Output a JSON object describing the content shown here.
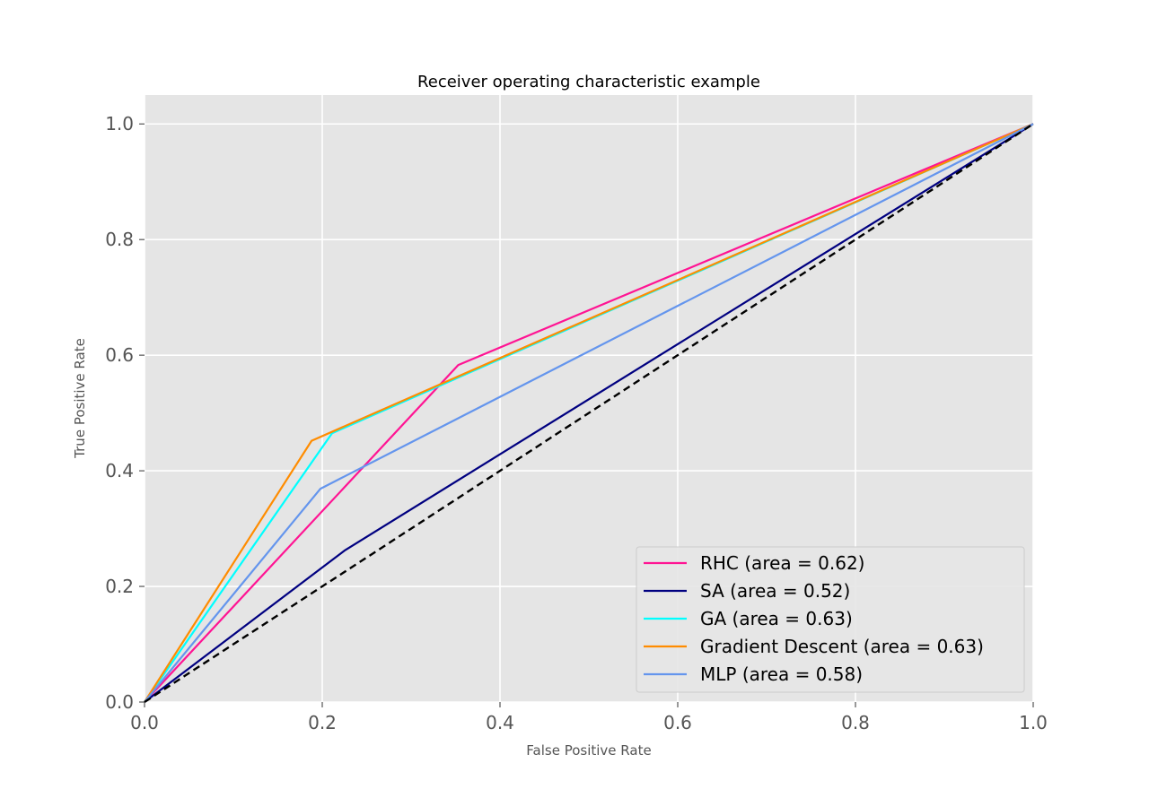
{
  "chart_data": {
    "type": "line",
    "title": "Receiver operating characteristic example",
    "xlabel": "False Positive Rate",
    "ylabel": "True Positive Rate",
    "xlim": [
      0.0,
      1.0
    ],
    "ylim": [
      0.0,
      1.05
    ],
    "xticks": [
      "0.0",
      "0.2",
      "0.4",
      "0.6",
      "0.8",
      "1.0"
    ],
    "yticks": [
      "0.0",
      "0.2",
      "0.4",
      "0.6",
      "0.8",
      "1.0"
    ],
    "grid": true,
    "legend_position": "lower-right",
    "series": [
      {
        "name": "RHC (area = 0.62)",
        "color": "#ff1493",
        "x": [
          0.0,
          0.353,
          1.0
        ],
        "y": [
          0.0,
          0.583,
          1.0
        ]
      },
      {
        "name": "SA (area = 0.52)",
        "color": "#000080",
        "x": [
          0.0,
          0.225,
          1.0
        ],
        "y": [
          0.0,
          0.262,
          1.0
        ]
      },
      {
        "name": "GA (area = 0.63)",
        "color": "#00ffff",
        "x": [
          0.0,
          0.211,
          1.0
        ],
        "y": [
          0.0,
          0.465,
          1.0
        ]
      },
      {
        "name": "Gradient Descent (area = 0.63)",
        "color": "#ff8c00",
        "x": [
          0.0,
          0.188,
          1.0
        ],
        "y": [
          0.0,
          0.452,
          1.0
        ]
      },
      {
        "name": "MLP (area = 0.58)",
        "color": "#6495ed",
        "x": [
          0.0,
          0.198,
          1.0
        ],
        "y": [
          0.0,
          0.369,
          1.0
        ]
      }
    ],
    "reference_line": {
      "color": "#000000",
      "style": "dashed",
      "x": [
        0.0,
        1.0
      ],
      "y": [
        0.0,
        1.0
      ]
    }
  }
}
